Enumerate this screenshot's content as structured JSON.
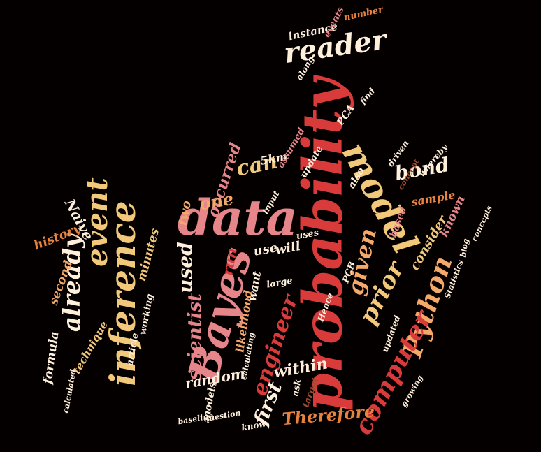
{
  "palette": {
    "bg": "#050000",
    "red": "#d93b3b",
    "deep": "#b52a2a",
    "pink": "#e7868a",
    "orange": "#e8833f",
    "peach": "#f4a86a",
    "gold": "#f2c87a",
    "cream": "#fff0dc",
    "brown": "#a04a2e"
  },
  "words": [
    {
      "id": "probability",
      "text": "probability"
    },
    {
      "id": "data",
      "text": "data"
    },
    {
      "id": "model",
      "text": "model"
    },
    {
      "id": "bayes",
      "text": "Bayes"
    },
    {
      "id": "inference",
      "text": "inference"
    },
    {
      "id": "event",
      "text": "event"
    },
    {
      "id": "already",
      "text": "already"
    },
    {
      "id": "reader",
      "text": "reader"
    },
    {
      "id": "python",
      "text": "Python"
    },
    {
      "id": "computer",
      "text": "computer"
    },
    {
      "id": "prior",
      "text": "prior"
    },
    {
      "id": "given",
      "text": "given"
    },
    {
      "id": "engineer",
      "text": "engineer"
    },
    {
      "id": "first",
      "text": "first"
    },
    {
      "id": "bond",
      "text": "bond"
    },
    {
      "id": "can",
      "text": "can"
    },
    {
      "id": "used",
      "text": "used"
    },
    {
      "id": "scientist",
      "text": "scientist"
    },
    {
      "id": "therefore",
      "text": "Therefore"
    },
    {
      "id": "within",
      "text": "within"
    },
    {
      "id": "random",
      "text": "random"
    },
    {
      "id": "occurred",
      "text": "occurred"
    },
    {
      "id": "naive",
      "text": "Naive"
    },
    {
      "id": "history",
      "text": "history"
    },
    {
      "id": "second",
      "text": "second"
    },
    {
      "id": "minutes",
      "text": "minutes"
    },
    {
      "id": "consider",
      "text": "consider"
    },
    {
      "id": "known",
      "text": "known"
    },
    {
      "id": "sample",
      "text": "sample"
    },
    {
      "id": "likelihood",
      "text": "likelihood"
    },
    {
      "id": "will",
      "text": "will"
    },
    {
      "id": "use",
      "text": "use"
    },
    {
      "id": "formula",
      "text": "formula"
    },
    {
      "id": "technique",
      "text": "technique"
    },
    {
      "id": "based",
      "text": "based"
    },
    {
      "id": "instance",
      "text": "instance"
    },
    {
      "id": "events",
      "text": "events"
    },
    {
      "id": "number",
      "text": "number"
    },
    {
      "id": "5km",
      "text": "5km"
    },
    {
      "id": "one",
      "text": "one"
    },
    {
      "id": "two",
      "text": "two"
    },
    {
      "id": "want",
      "text": "want"
    },
    {
      "id": "run",
      "text": "run"
    },
    {
      "id": "models",
      "text": "models"
    },
    {
      "id": "article",
      "text": "article"
    },
    {
      "id": "working",
      "text": "working"
    },
    {
      "id": "also",
      "text": "also"
    },
    {
      "id": "uses",
      "text": "uses"
    },
    {
      "id": "pcb",
      "text": "PCB"
    },
    {
      "id": "pca",
      "text": "PCA"
    },
    {
      "id": "find",
      "text": "find"
    },
    {
      "id": "assumed",
      "text": "assumed"
    },
    {
      "id": "update",
      "text": "update"
    },
    {
      "id": "whereby",
      "text": "whereby"
    },
    {
      "id": "concepts",
      "text": "concepts"
    },
    {
      "id": "target",
      "text": "target"
    },
    {
      "id": "ask",
      "text": "ask"
    },
    {
      "id": "calculated",
      "text": "calculated"
    },
    {
      "id": "know",
      "text": "know"
    },
    {
      "id": "statistics",
      "text": "Statistics"
    },
    {
      "id": "large",
      "text": "large"
    },
    {
      "id": "input",
      "text": "input"
    },
    {
      "id": "driven",
      "text": "driven"
    },
    {
      "id": "blog",
      "text": "blog"
    },
    {
      "id": "along",
      "text": "along"
    },
    {
      "id": "updated",
      "text": "updated"
    },
    {
      "id": "calculating",
      "text": "calculating"
    },
    {
      "id": "question",
      "text": "question"
    },
    {
      "id": "baseline",
      "text": "baseline"
    },
    {
      "id": "concept",
      "text": "concept"
    },
    {
      "id": "growing",
      "text": "growing"
    },
    {
      "id": "hence",
      "text": "Hence"
    }
  ]
}
